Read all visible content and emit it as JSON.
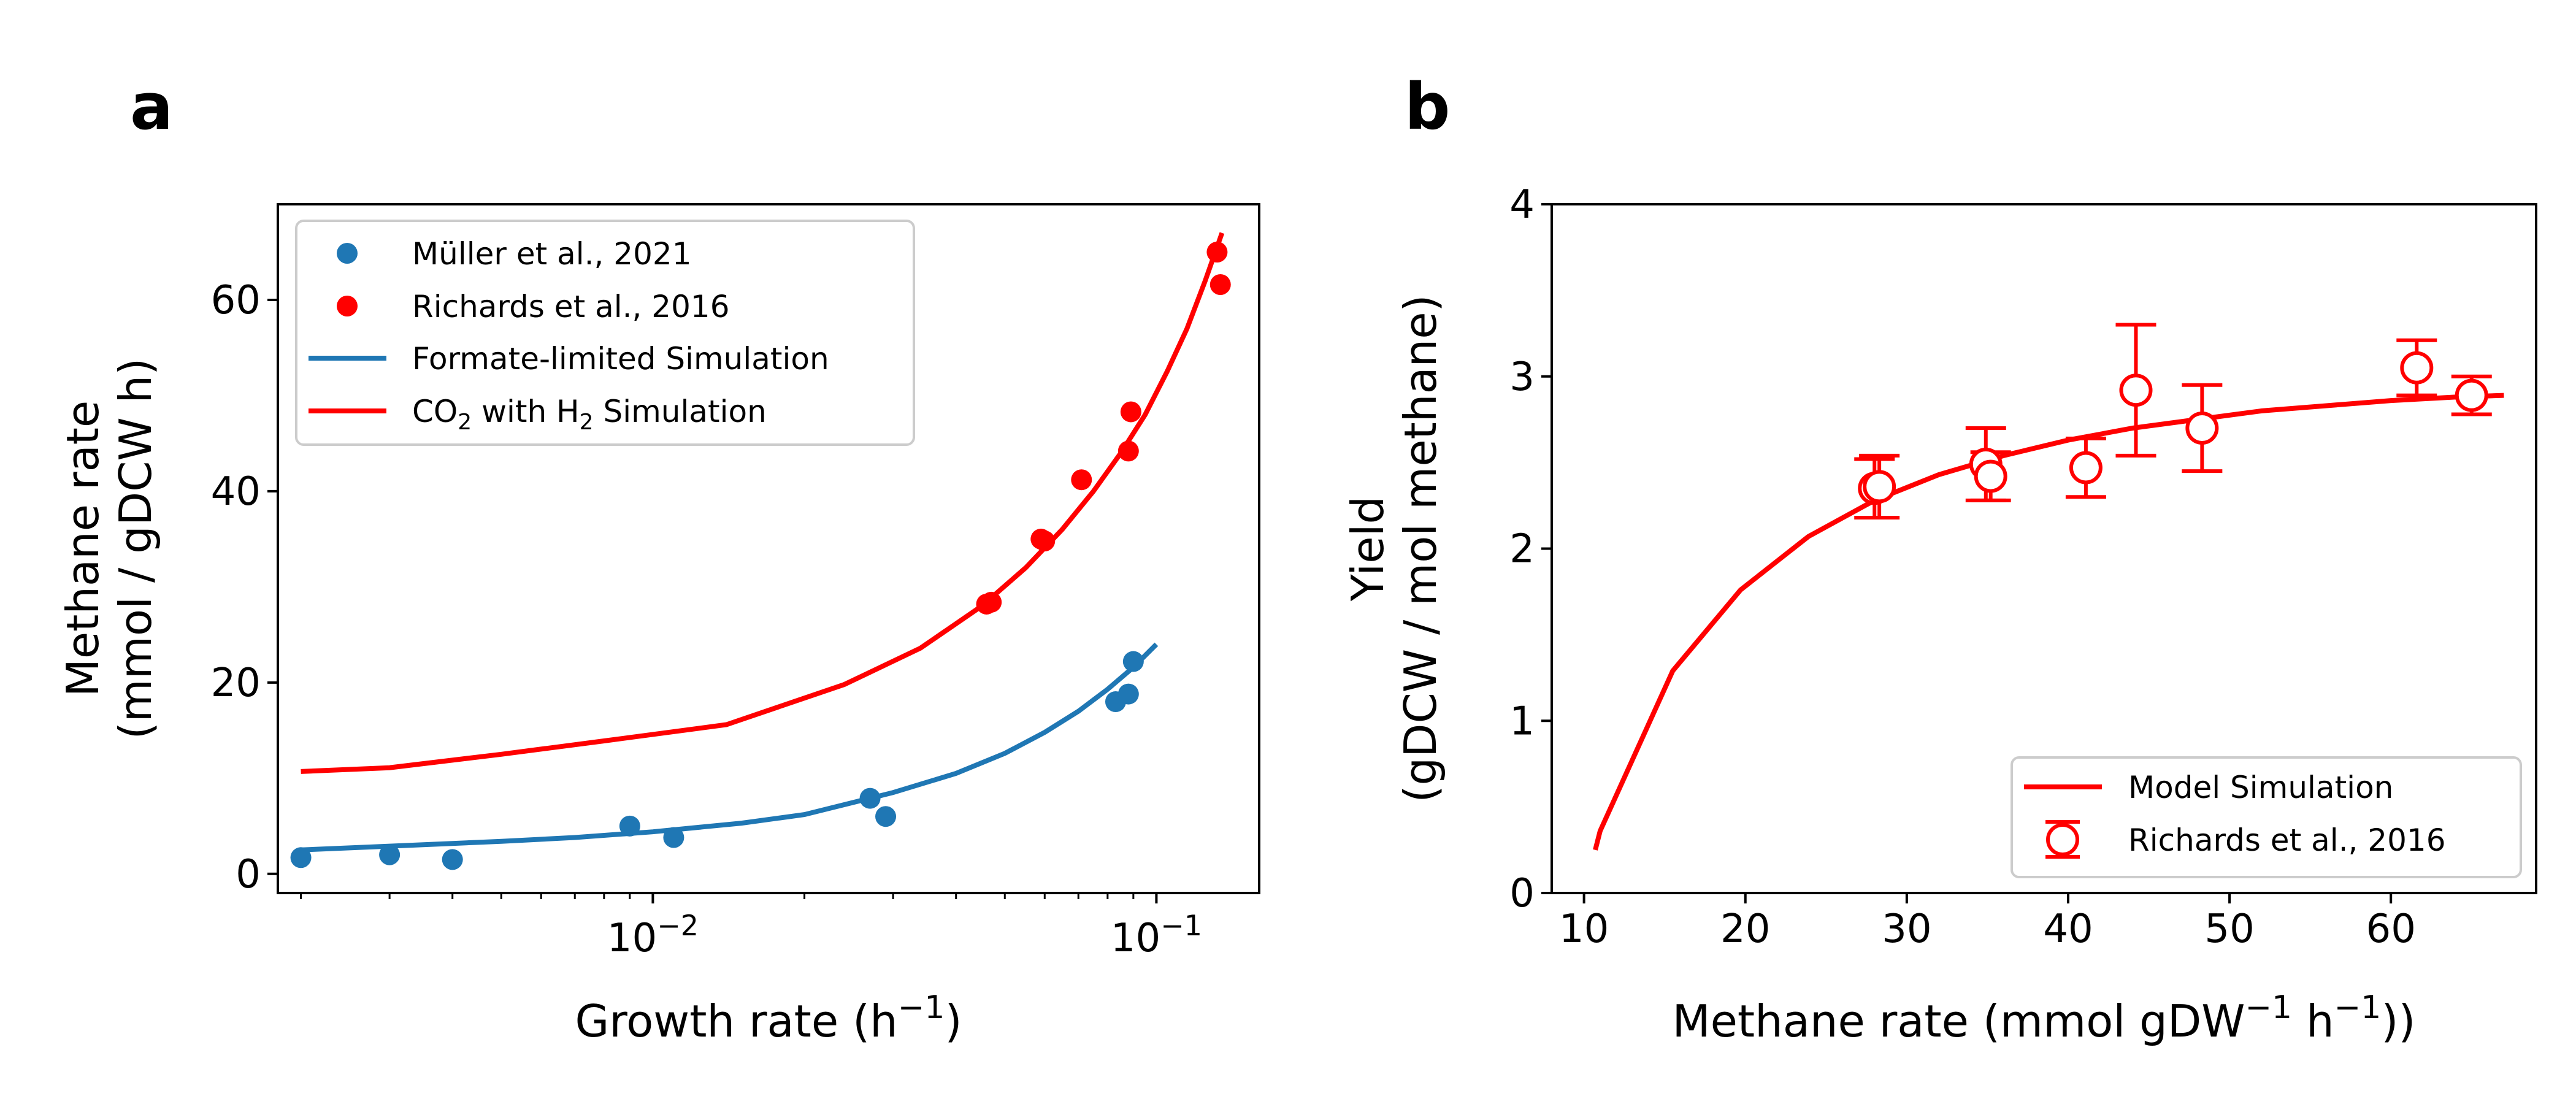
{
  "panel_labels": {
    "a": "a",
    "b": "b"
  },
  "colors": {
    "blue": "#1f77b4",
    "red": "#ff0000",
    "axis": "#000000"
  },
  "chart_data": [
    {
      "panel": "a",
      "type": "scatter",
      "xscale": "log",
      "xlim": [
        0.0018,
        0.16
      ],
      "ylim": [
        -2,
        70
      ],
      "xlabel": "Growth rate (h",
      "xlabel_sup": "−1",
      "xlabel_end": ")",
      "ylabel_lines": [
        "Methane rate",
        "(mmol / gDCW h)"
      ],
      "y_ticks": [
        0,
        20,
        40,
        60
      ],
      "x_major_ticks": [
        {
          "value": 0.01,
          "base": "10",
          "exp": "−2"
        },
        {
          "value": 0.1,
          "base": "10",
          "exp": "−1"
        }
      ],
      "x_minor_ticks": [
        0.002,
        0.003,
        0.004,
        0.005,
        0.006,
        0.007,
        0.008,
        0.009,
        0.02,
        0.03,
        0.04,
        0.05,
        0.06,
        0.07,
        0.08,
        0.09
      ],
      "legend": {
        "position": "upper-left",
        "entries": [
          {
            "label": "Müller et al., 2021",
            "kind": "marker",
            "color": "#1f77b4"
          },
          {
            "label": "Richards et al., 2016",
            "kind": "marker",
            "color": "#ff0000"
          },
          {
            "label": "Formate-limited Simulation",
            "kind": "line",
            "color": "#1f77b4"
          },
          {
            "label_parts": [
              "CO",
              "2",
              " with H",
              "2",
              " Simulation"
            ],
            "kind": "line",
            "color": "#ff0000"
          }
        ]
      },
      "series": [
        {
          "name": "Müller et al., 2021",
          "kind": "points",
          "color": "#1f77b4",
          "x": [
            0.002,
            0.003,
            0.004,
            0.009,
            0.011,
            0.027,
            0.029,
            0.083,
            0.088,
            0.09
          ],
          "y": [
            1.7,
            2.0,
            1.5,
            5.0,
            3.8,
            7.9,
            6.0,
            18.0,
            18.8,
            22.2
          ]
        },
        {
          "name": "Richards et al., 2016",
          "kind": "points",
          "color": "#ff0000",
          "x": [
            0.046,
            0.047,
            0.059,
            0.06,
            0.071,
            0.088,
            0.089,
            0.132,
            0.134
          ],
          "y": [
            28.2,
            28.4,
            35.0,
            34.8,
            41.2,
            44.2,
            48.3,
            65.0,
            61.6
          ]
        },
        {
          "name": "Formate-limited Simulation",
          "kind": "line",
          "color": "#1f77b4",
          "x": [
            0.002,
            0.003,
            0.005,
            0.007,
            0.01,
            0.015,
            0.02,
            0.03,
            0.04,
            0.05,
            0.06,
            0.07,
            0.08,
            0.09,
            0.1
          ],
          "y": [
            2.5,
            2.9,
            3.4,
            3.8,
            4.4,
            5.3,
            6.2,
            8.5,
            10.5,
            12.6,
            14.8,
            17.0,
            19.3,
            21.6,
            24.0
          ]
        },
        {
          "name": "CO2 with H2 Simulation",
          "kind": "line",
          "color": "#ff0000",
          "x": [
            0.002,
            0.003,
            0.005,
            0.008,
            0.014,
            0.024,
            0.034,
            0.045,
            0.055,
            0.065,
            0.075,
            0.085,
            0.095,
            0.105,
            0.115,
            0.125,
            0.135
          ],
          "y": [
            10.7,
            11.1,
            12.5,
            13.9,
            15.6,
            19.8,
            23.6,
            28.0,
            32.0,
            36.0,
            40.0,
            44.0,
            48.0,
            52.5,
            57.0,
            62.0,
            67.0
          ]
        }
      ]
    },
    {
      "panel": "b",
      "type": "line",
      "xscale": "linear",
      "xlim": [
        8,
        69
      ],
      "ylim": [
        0,
        4
      ],
      "xlabel": "Methane rate (mmol gDW",
      "xlabel_sup1": "−1",
      "xlabel_mid": " h",
      "xlabel_sup2": "−1",
      "xlabel_end": "))",
      "ylabel_lines": [
        "Yield",
        "(gDCW / mol methane)"
      ],
      "x_ticks": [
        10,
        20,
        30,
        40,
        50,
        60
      ],
      "y_ticks": [
        0,
        1,
        2,
        3,
        4
      ],
      "legend": {
        "position": "lower-right",
        "entries": [
          {
            "label": "Model Simulation",
            "kind": "line",
            "color": "#ff0000"
          },
          {
            "label": "Richards et al., 2016",
            "kind": "errorbar",
            "color": "#ff0000"
          }
        ]
      },
      "series": [
        {
          "name": "Model Simulation",
          "kind": "line",
          "color": "#ff0000",
          "x": [
            10.7,
            11.0,
            15.5,
            19.7,
            23.9,
            28.0,
            32.0,
            36.0,
            40.0,
            44.0,
            48.0,
            52.0,
            56.0,
            60.0,
            64.0,
            67.0
          ],
          "y": [
            0.25,
            0.36,
            1.29,
            1.76,
            2.07,
            2.28,
            2.43,
            2.54,
            2.63,
            2.7,
            2.75,
            2.8,
            2.83,
            2.86,
            2.88,
            2.89
          ]
        },
        {
          "name": "Richards et al., 2016",
          "kind": "errorbar",
          "color": "#ff0000",
          "x": [
            28.0,
            28.3,
            34.9,
            35.2,
            41.1,
            44.2,
            48.3,
            61.6,
            65.0
          ],
          "y": [
            2.35,
            2.36,
            2.49,
            2.42,
            2.47,
            2.92,
            2.7,
            3.05,
            2.89
          ],
          "err": [
            0.17,
            0.18,
            0.21,
            0.14,
            0.17,
            0.38,
            0.25,
            0.16,
            0.11
          ]
        }
      ]
    }
  ]
}
